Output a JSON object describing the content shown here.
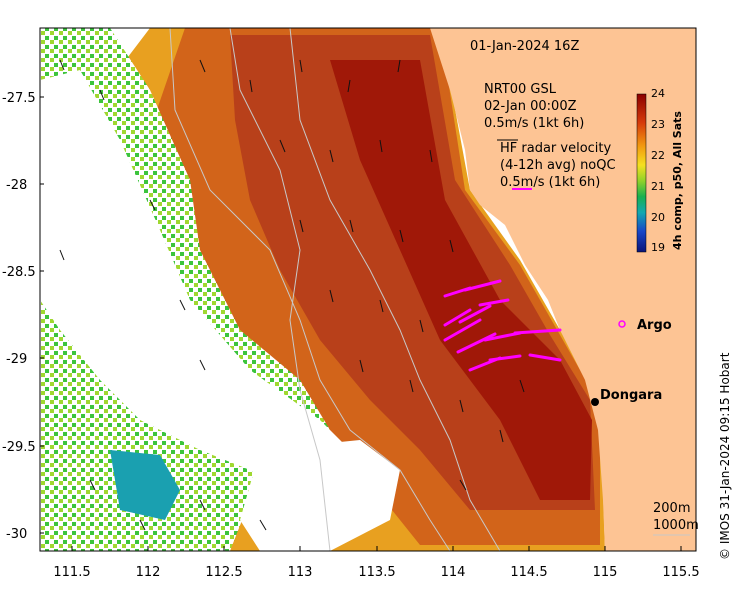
{
  "map": {
    "timestamp": "01-Jan-2024 16Z",
    "x_ticks": [
      "111.5",
      "112",
      "112.5",
      "113",
      "113.5",
      "114",
      "114.5",
      "115",
      "115.5"
    ],
    "y_ticks": [
      "-27.5",
      "-28",
      "-28.5",
      "-29",
      "-29.5",
      "-30"
    ],
    "legend_current": {
      "line1": "NRT00 GSL",
      "line2": "02-Jan 00:00Z",
      "line3": "0.5m/s (1kt 6h)"
    },
    "legend_radar": {
      "line1": "HF radar velocity",
      "line2": "(4-12h avg) noQC",
      "line3": "0.5m/s (1kt 6h)"
    },
    "colorbar": {
      "ticks": [
        "24",
        "23",
        "22",
        "21",
        "20",
        "19"
      ],
      "label": "4h comp, p50, All Sats"
    },
    "places": {
      "argo": "Argo",
      "dongara": "Dongara"
    },
    "depth_contours": {
      "c200": "200m",
      "c1000": "1000m"
    },
    "credit": "© IMOS 31-Jan-2024 09:15 Hobart",
    "colors": {
      "land": "#fdc494",
      "hf_radar": "#ff00ff",
      "warm": "#a01808",
      "cool": "#2ab43c"
    }
  }
}
